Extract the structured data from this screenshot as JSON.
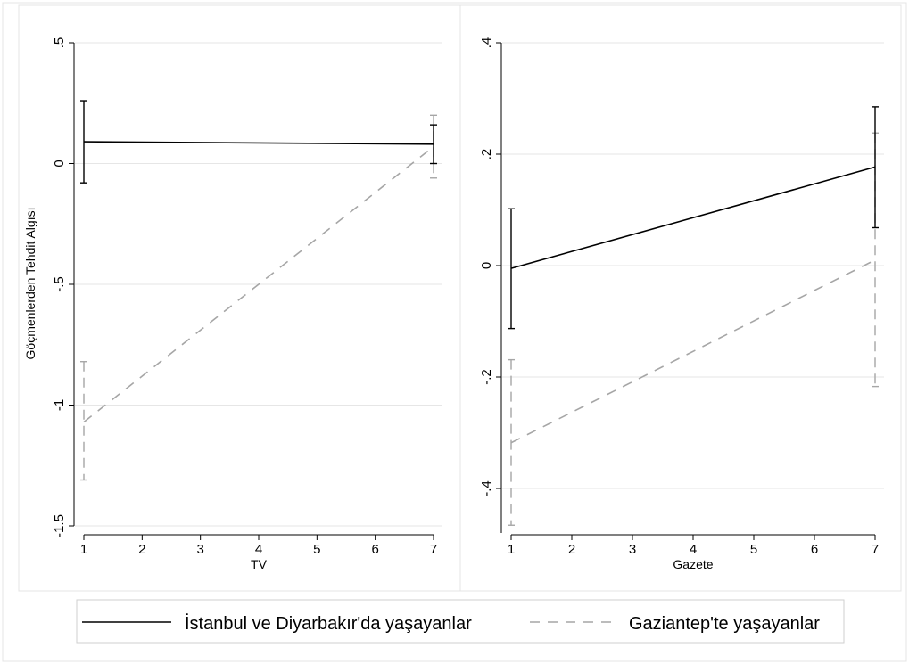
{
  "chart_data": [
    {
      "type": "line",
      "xlabel": "TV",
      "ylabel": "Göçmenlerden Tehdit Algısı",
      "xlim": [
        1,
        7
      ],
      "ylim": [
        -1.5,
        0.5
      ],
      "x_ticks": [
        "1",
        "2",
        "3",
        "4",
        "5",
        "6",
        "7"
      ],
      "y_ticks": [
        {
          "value": -1.5,
          "label": "-1.5"
        },
        {
          "value": -1,
          "label": "-1"
        },
        {
          "value": -0.5,
          "label": "-.5"
        },
        {
          "value": 0,
          "label": "0"
        },
        {
          "value": 0.5,
          "label": ".5"
        }
      ],
      "grid": true,
      "series": [
        {
          "name": "İstanbul ve Diyarbakır'da yaşayanlar",
          "x": [
            1,
            7
          ],
          "values": [
            0.09,
            0.08
          ],
          "ci_low": [
            -0.08,
            0.0
          ],
          "ci_high": [
            0.26,
            0.16
          ],
          "color": "#000000",
          "dash": false
        },
        {
          "name": "Gaziantep'te yaşayanlar",
          "x": [
            1,
            7
          ],
          "values": [
            -1.07,
            0.07
          ],
          "ci_low": [
            -1.31,
            -0.06
          ],
          "ci_high": [
            -0.82,
            0.2
          ],
          "color": "#a6a6a6",
          "dash": true
        }
      ]
    },
    {
      "type": "line",
      "xlabel": "Gazete",
      "ylabel": "",
      "xlim": [
        1,
        7
      ],
      "ylim": [
        -0.48,
        0.4
      ],
      "x_ticks": [
        "1",
        "2",
        "3",
        "4",
        "5",
        "6",
        "7"
      ],
      "y_ticks": [
        {
          "value": -0.4,
          "label": "-.4"
        },
        {
          "value": -0.2,
          "label": "-.2"
        },
        {
          "value": 0,
          "label": "0"
        },
        {
          "value": 0.2,
          "label": ".2"
        },
        {
          "value": 0.4,
          "label": ".4"
        }
      ],
      "grid": true,
      "series": [
        {
          "name": "İstanbul ve Diyarbakır'da yaşayanlar",
          "x": [
            1,
            7
          ],
          "values": [
            -0.005,
            0.177
          ],
          "ci_low": [
            -0.113,
            0.068
          ],
          "ci_high": [
            0.102,
            0.285
          ],
          "color": "#000000",
          "dash": false
        },
        {
          "name": "Gaziantep'te yaşayanlar",
          "x": [
            1,
            7
          ],
          "values": [
            -0.318,
            0.01
          ],
          "ci_low": [
            -0.466,
            -0.217
          ],
          "ci_high": [
            -0.169,
            0.238
          ],
          "color": "#a6a6a6",
          "dash": true
        }
      ]
    }
  ],
  "legend": {
    "placement": "bottom",
    "items": [
      {
        "label": "İstanbul ve Diyarbakır'da yaşayanlar",
        "color": "#000000",
        "dash": false
      },
      {
        "label": "Gaziantep'te yaşayanlar",
        "color": "#a6a6a6",
        "dash": true
      }
    ]
  }
}
